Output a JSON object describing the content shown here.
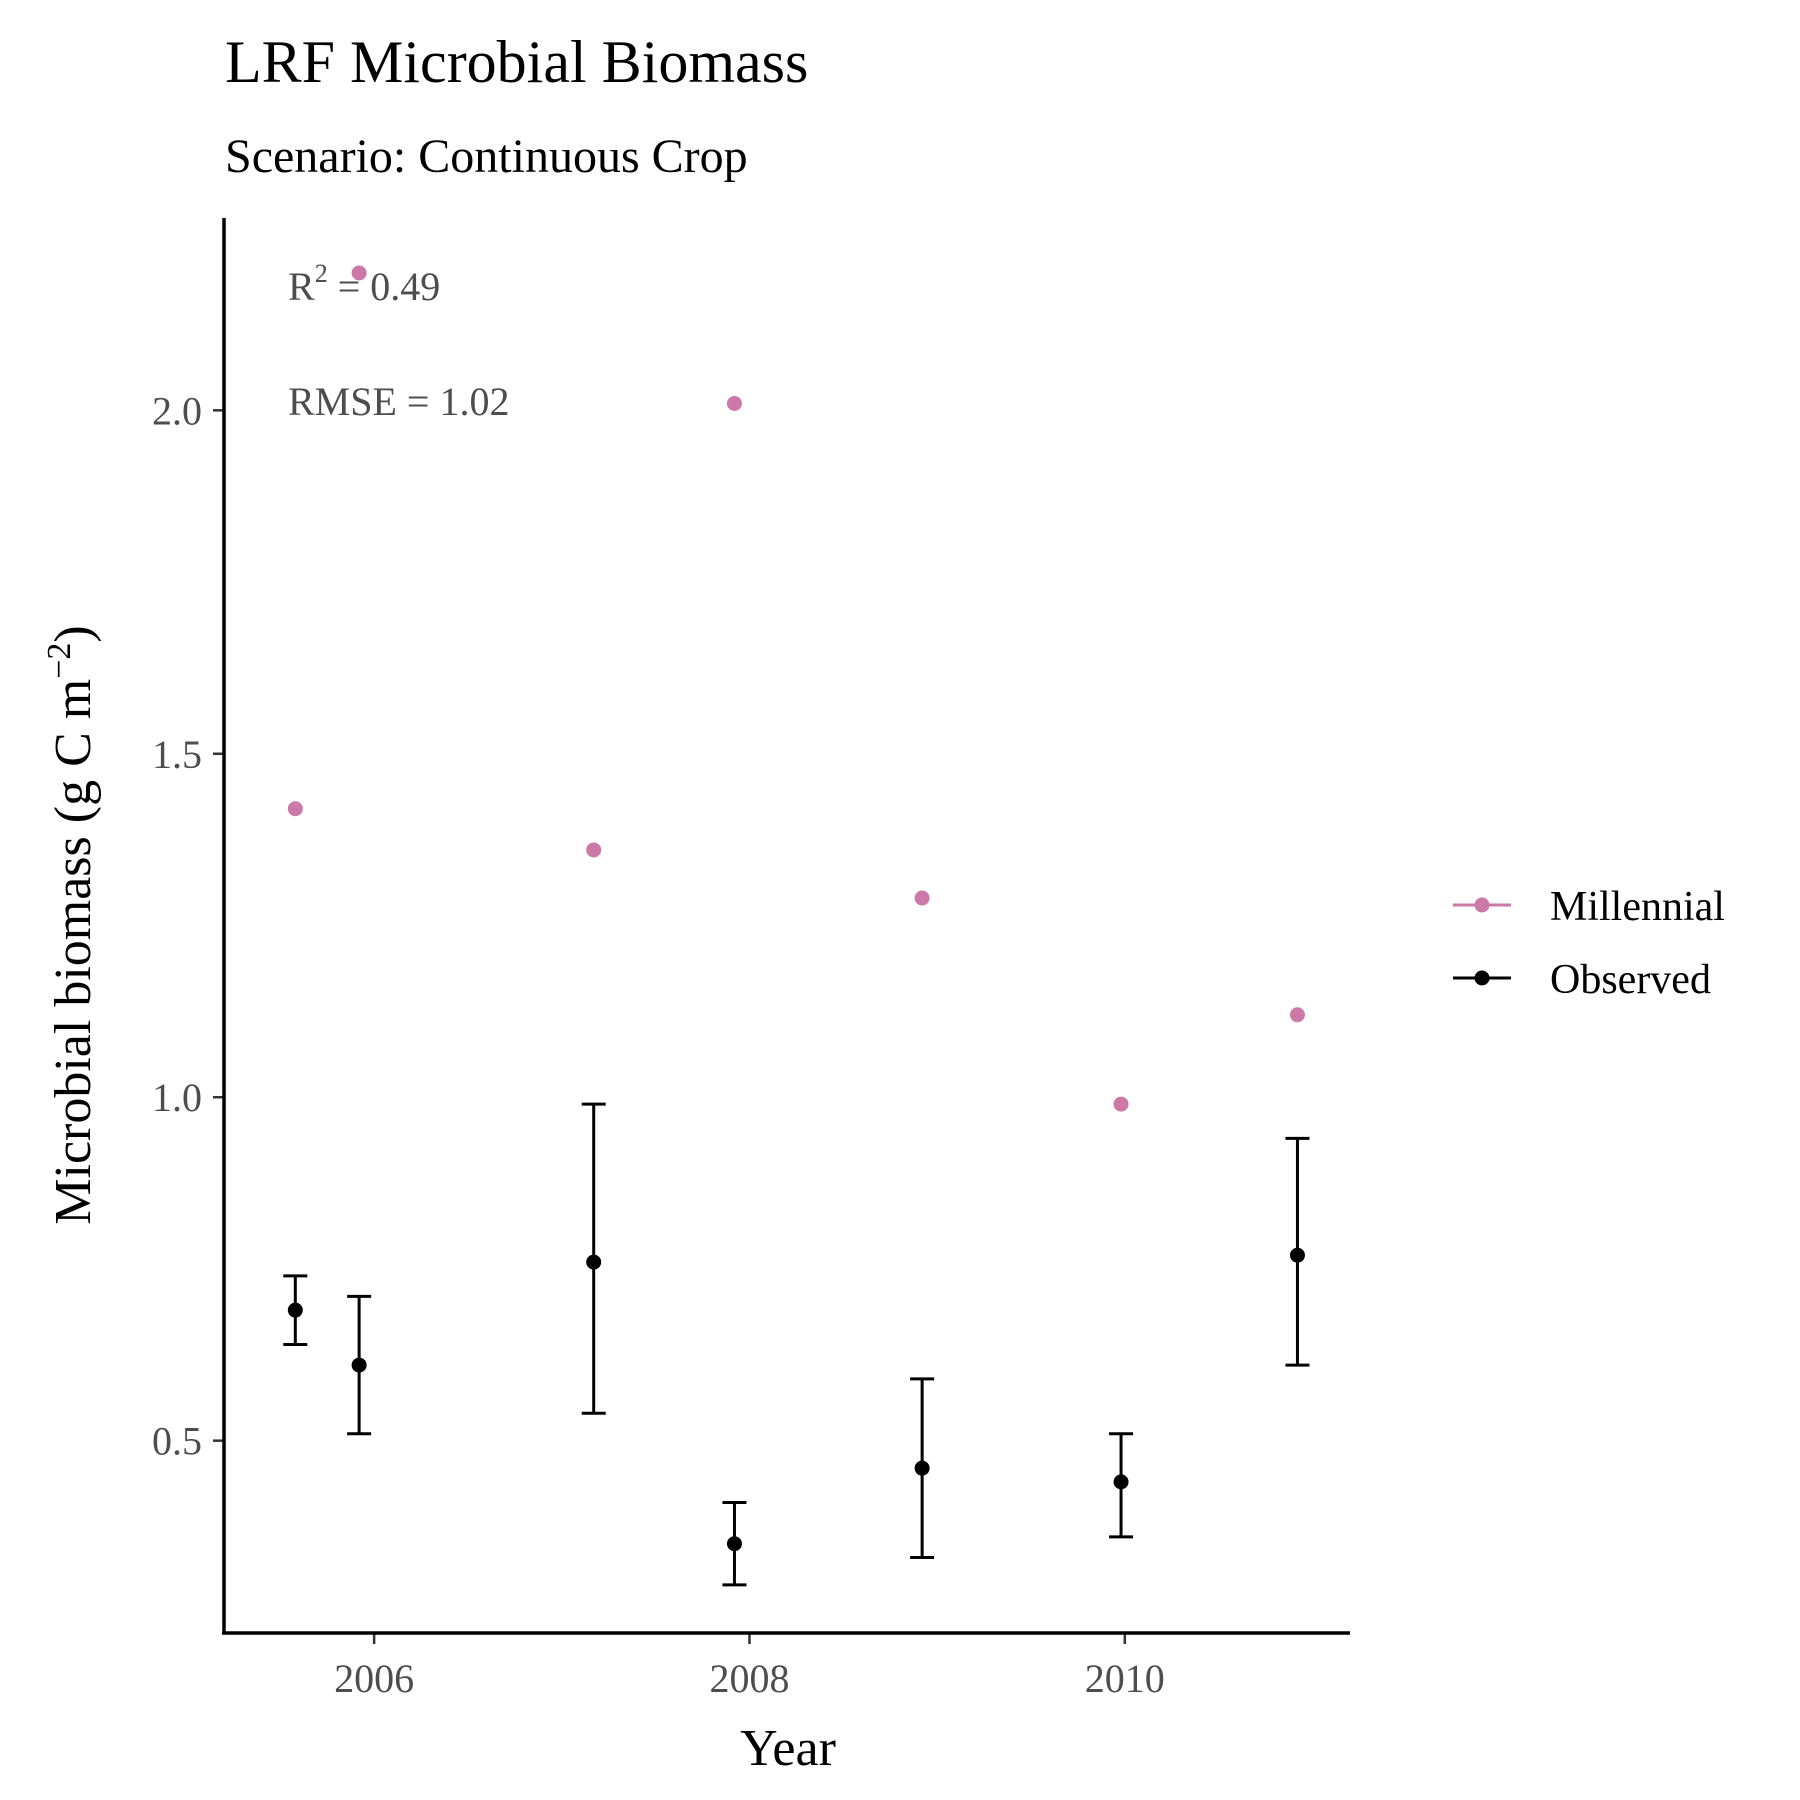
{
  "chart_data": {
    "type": "scatter",
    "title": "LRF Microbial Biomass",
    "subtitle": "Scenario: Continuous Crop",
    "xlabel": "Year",
    "ylabel_main": "Microbial biomass (g C m",
    "ylabel_sup": "−2",
    "ylabel_close": ")",
    "xlim": [
      2005.2,
      2011.2
    ],
    "ylim": [
      0.22,
      2.28
    ],
    "x_ticks": [
      2006,
      2008,
      2010
    ],
    "x_tick_labels": [
      "2006",
      "2008",
      "2010"
    ],
    "y_ticks": [
      0.5,
      1.0,
      1.5,
      2.0
    ],
    "y_tick_labels": [
      "0.5",
      "1.0",
      "1.5",
      "2.0"
    ],
    "grid": false,
    "legend_position": "right",
    "series": [
      {
        "name": "Millennial",
        "color": "#cc79a7",
        "x": [
          2005.58,
          2005.92,
          2007.17,
          2007.92,
          2008.92,
          2009.98,
          2010.92
        ],
        "y": [
          1.42,
          2.2,
          1.36,
          2.01,
          1.29,
          0.99,
          1.12
        ]
      },
      {
        "name": "Observed",
        "color": "#000000",
        "x": [
          2005.58,
          2005.92,
          2007.17,
          2007.92,
          2008.92,
          2009.98,
          2010.92
        ],
        "y": [
          0.69,
          0.61,
          0.76,
          0.35,
          0.46,
          0.44,
          0.77
        ],
        "ymin": [
          0.64,
          0.51,
          0.54,
          0.29,
          0.33,
          0.36,
          0.61
        ],
        "ymax": [
          0.74,
          0.71,
          0.99,
          0.41,
          0.59,
          0.51,
          0.94
        ]
      }
    ],
    "annotations": {
      "r2_label": "R",
      "r2_sup": "2",
      "r2_value": " = 0.49",
      "rmse": "RMSE = 1.02"
    }
  }
}
